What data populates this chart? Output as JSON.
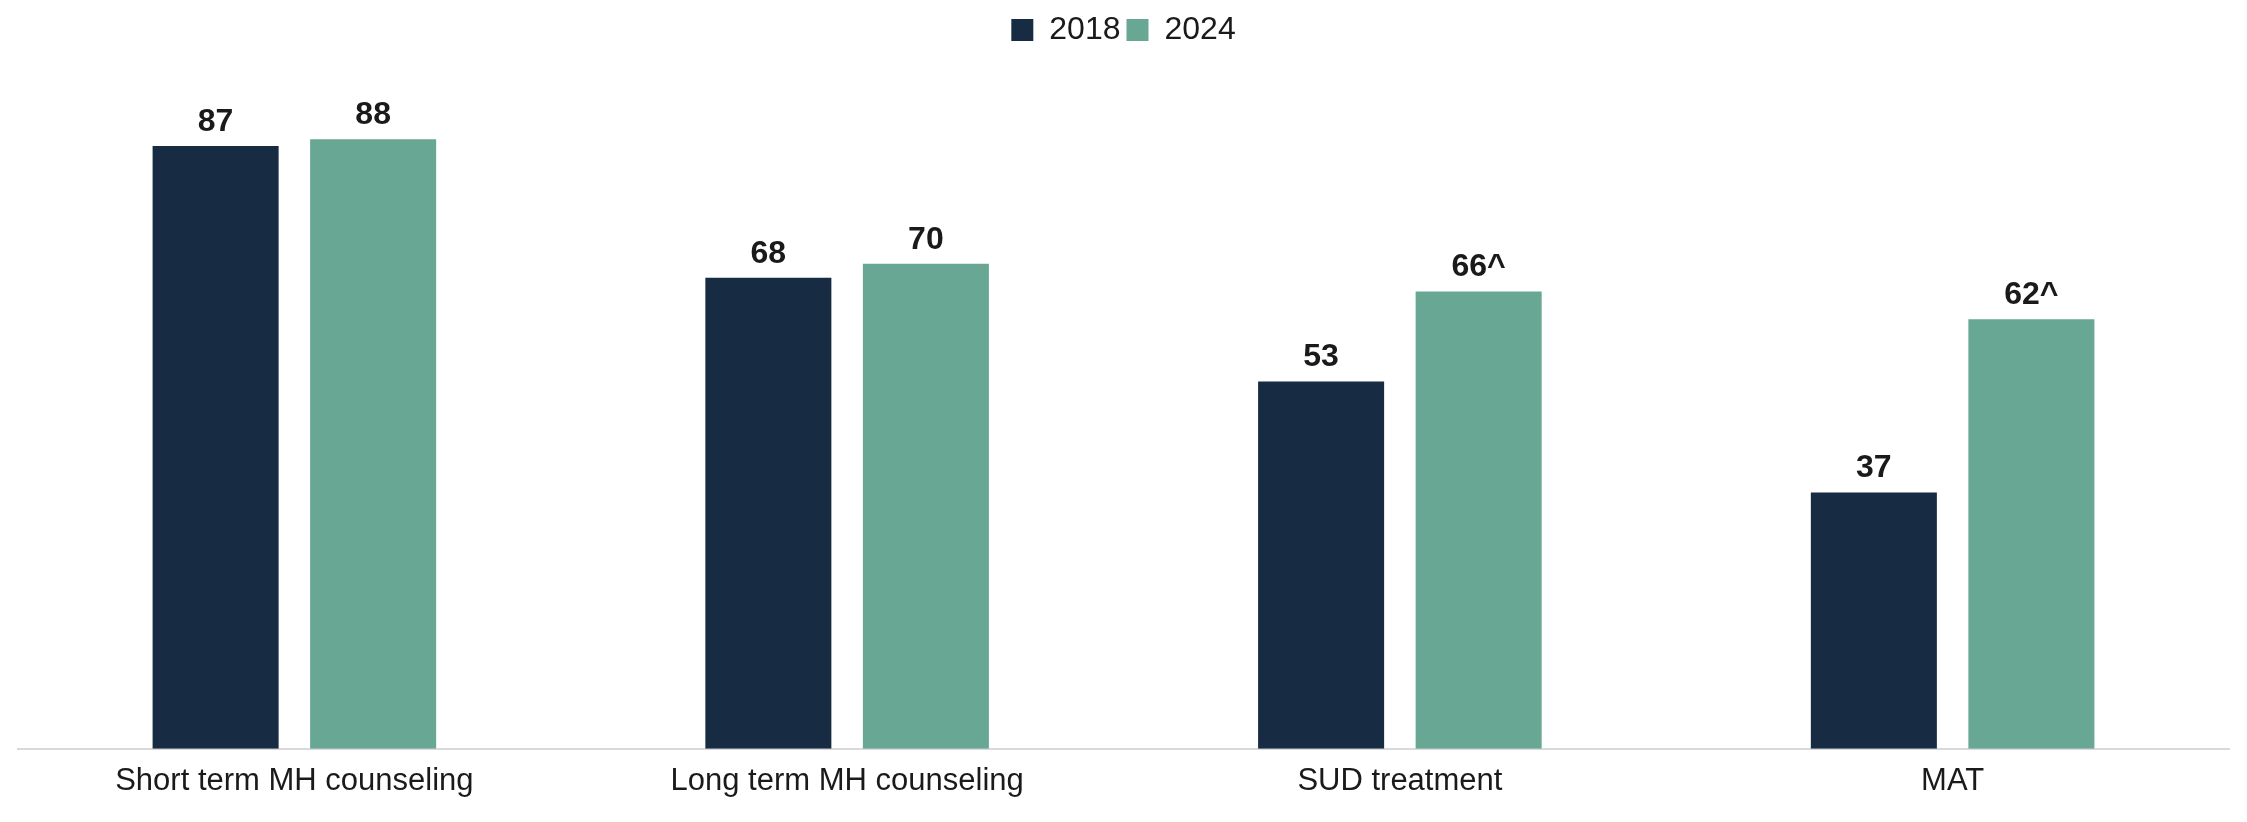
{
  "chart_data": {
    "type": "bar",
    "categories": [
      "Short term MH counseling",
      "Long term MH counseling",
      "SUD treatment",
      "MAT"
    ],
    "series": [
      {
        "name": "2018",
        "color": "#172b42",
        "values": [
          87,
          68,
          53,
          37
        ],
        "value_labels": [
          "87",
          "68",
          "53",
          "37"
        ]
      },
      {
        "name": "2024",
        "color": "#67a793",
        "values": [
          88,
          70,
          66,
          62
        ],
        "value_labels": [
          "88",
          "70",
          "66^",
          "62^"
        ]
      }
    ],
    "legend": "top",
    "grid": false
  }
}
